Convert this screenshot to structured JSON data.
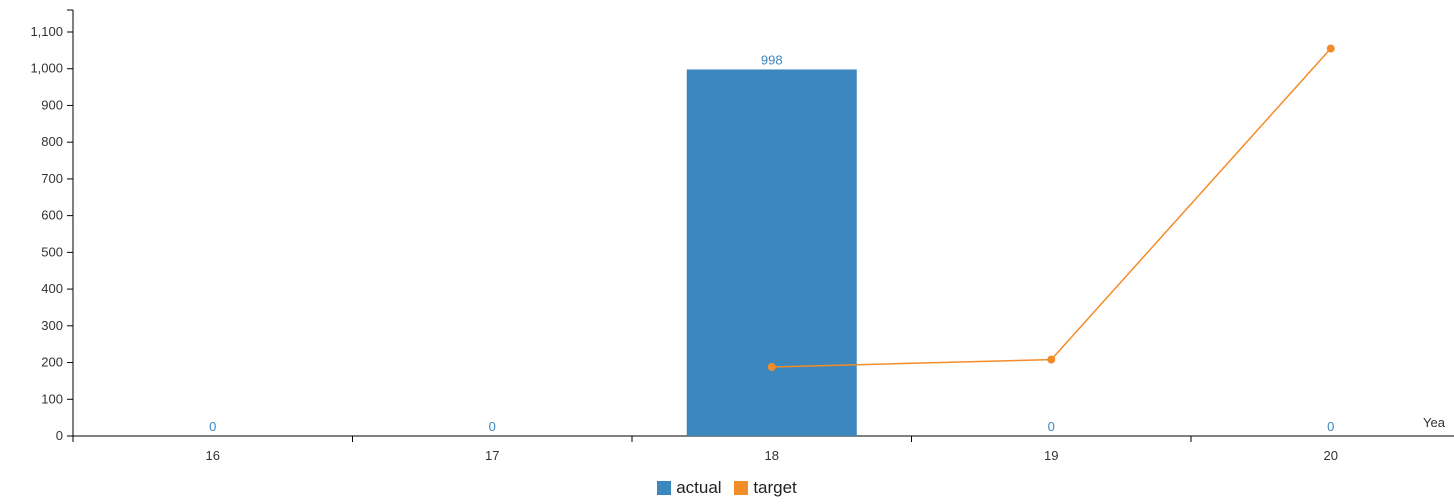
{
  "chart_data": {
    "type": "bar",
    "categories": [
      "16",
      "17",
      "18",
      "19",
      "20"
    ],
    "series": [
      {
        "name": "actual",
        "chart_type": "bar",
        "color": "#3d87bf",
        "values": [
          0,
          0,
          998,
          0,
          0
        ],
        "data_labels": [
          "0",
          "0",
          "998",
          "0",
          "0"
        ]
      },
      {
        "name": "target",
        "chart_type": "line",
        "color": "#f28c28",
        "x": [
          "18",
          "19",
          "20"
        ],
        "values": [
          188,
          208,
          1055
        ]
      }
    ],
    "xlabel": "Yea",
    "ylabel": "",
    "ylim": [
      0,
      1100
    ],
    "y_ticks": [
      0,
      100,
      200,
      300,
      400,
      500,
      600,
      700,
      800,
      900,
      1000,
      1100
    ],
    "y_tick_labels": [
      "0",
      "100",
      "200",
      "300",
      "400",
      "500",
      "600",
      "700",
      "800",
      "900",
      "1,000",
      "1,100"
    ],
    "legend_position": "bottom-center",
    "grid": false
  }
}
